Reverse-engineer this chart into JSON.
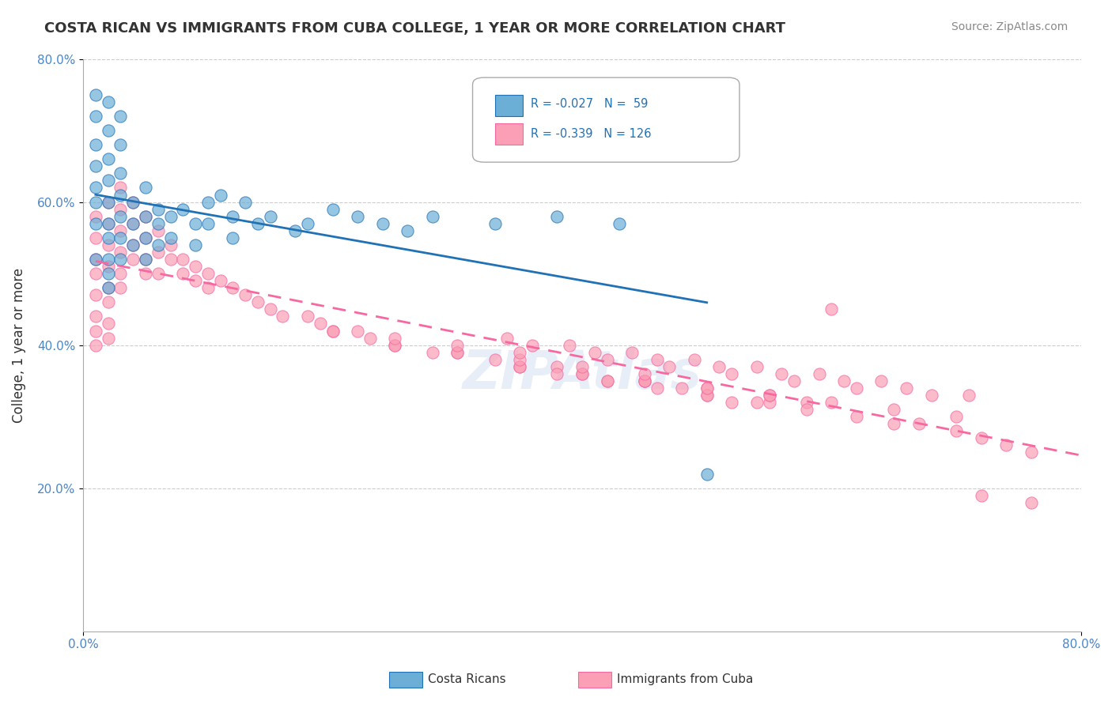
{
  "title": "COSTA RICAN VS IMMIGRANTS FROM CUBA COLLEGE, 1 YEAR OR MORE CORRELATION CHART",
  "source": "Source: ZipAtlas.com",
  "xlabel": "",
  "ylabel": "College, 1 year or more",
  "xlim": [
    0.0,
    0.8
  ],
  "ylim": [
    0.0,
    0.8
  ],
  "xtick_labels": [
    "0.0%",
    "80.0%"
  ],
  "ytick_labels": [
    "20.0%",
    "40.0%",
    "60.0%",
    "80.0%"
  ],
  "legend_r1": "R = -0.027",
  "legend_n1": "N =  59",
  "legend_r2": "R = -0.339",
  "legend_n2": "N = 126",
  "color_blue": "#6baed6",
  "color_pink": "#fa9fb5",
  "color_blue_line": "#2171b5",
  "color_pink_line": "#f768a1",
  "color_blue_dark": "#2b6cb0",
  "color_pink_dark": "#e05fa0",
  "watermark": "ZIPAtlas",
  "costa_rican_x": [
    0.01,
    0.01,
    0.01,
    0.01,
    0.01,
    0.01,
    0.01,
    0.01,
    0.02,
    0.02,
    0.02,
    0.02,
    0.02,
    0.02,
    0.02,
    0.02,
    0.02,
    0.02,
    0.03,
    0.03,
    0.03,
    0.03,
    0.03,
    0.03,
    0.03,
    0.04,
    0.04,
    0.04,
    0.05,
    0.05,
    0.05,
    0.05,
    0.06,
    0.06,
    0.06,
    0.07,
    0.07,
    0.08,
    0.09,
    0.09,
    0.1,
    0.1,
    0.11,
    0.12,
    0.12,
    0.13,
    0.14,
    0.15,
    0.17,
    0.18,
    0.2,
    0.22,
    0.24,
    0.26,
    0.28,
    0.33,
    0.38,
    0.43,
    0.5
  ],
  "costa_rican_y": [
    0.75,
    0.72,
    0.68,
    0.65,
    0.62,
    0.6,
    0.57,
    0.52,
    0.74,
    0.7,
    0.66,
    0.63,
    0.6,
    0.57,
    0.55,
    0.52,
    0.5,
    0.48,
    0.72,
    0.68,
    0.64,
    0.61,
    0.58,
    0.55,
    0.52,
    0.6,
    0.57,
    0.54,
    0.62,
    0.58,
    0.55,
    0.52,
    0.59,
    0.57,
    0.54,
    0.58,
    0.55,
    0.59,
    0.57,
    0.54,
    0.6,
    0.57,
    0.61,
    0.58,
    0.55,
    0.6,
    0.57,
    0.58,
    0.56,
    0.57,
    0.59,
    0.58,
    0.57,
    0.56,
    0.58,
    0.57,
    0.58,
    0.57,
    0.22
  ],
  "cuba_x": [
    0.01,
    0.01,
    0.01,
    0.01,
    0.01,
    0.01,
    0.01,
    0.01,
    0.02,
    0.02,
    0.02,
    0.02,
    0.02,
    0.02,
    0.02,
    0.02,
    0.03,
    0.03,
    0.03,
    0.03,
    0.03,
    0.03,
    0.04,
    0.04,
    0.04,
    0.04,
    0.05,
    0.05,
    0.05,
    0.05,
    0.06,
    0.06,
    0.06,
    0.07,
    0.07,
    0.08,
    0.08,
    0.09,
    0.09,
    0.1,
    0.1,
    0.11,
    0.12,
    0.13,
    0.14,
    0.15,
    0.16,
    0.18,
    0.19,
    0.2,
    0.22,
    0.23,
    0.25,
    0.28,
    0.3,
    0.33,
    0.35,
    0.38,
    0.4,
    0.42,
    0.45,
    0.48,
    0.5,
    0.52,
    0.55,
    0.58,
    0.6,
    0.62,
    0.65,
    0.67,
    0.7,
    0.72,
    0.74,
    0.76,
    0.45,
    0.5,
    0.55,
    0.6,
    0.65,
    0.7,
    0.38,
    0.42,
    0.46,
    0.5,
    0.54,
    0.58,
    0.35,
    0.4,
    0.45,
    0.5,
    0.55,
    0.25,
    0.3,
    0.35,
    0.4,
    0.45,
    0.2,
    0.25,
    0.3,
    0.35,
    0.42,
    0.47,
    0.52,
    0.57,
    0.62,
    0.68,
    0.72,
    0.76,
    0.36,
    0.41,
    0.46,
    0.51,
    0.56,
    0.61,
    0.66,
    0.71,
    0.34,
    0.39,
    0.44,
    0.49,
    0.54,
    0.59,
    0.64
  ],
  "cuba_y": [
    0.58,
    0.55,
    0.52,
    0.5,
    0.47,
    0.44,
    0.42,
    0.4,
    0.6,
    0.57,
    0.54,
    0.51,
    0.48,
    0.46,
    0.43,
    0.41,
    0.62,
    0.59,
    0.56,
    0.53,
    0.5,
    0.48,
    0.6,
    0.57,
    0.54,
    0.52,
    0.58,
    0.55,
    0.52,
    0.5,
    0.56,
    0.53,
    0.5,
    0.54,
    0.52,
    0.52,
    0.5,
    0.51,
    0.49,
    0.5,
    0.48,
    0.49,
    0.48,
    0.47,
    0.46,
    0.45,
    0.44,
    0.44,
    0.43,
    0.42,
    0.42,
    0.41,
    0.4,
    0.39,
    0.39,
    0.38,
    0.37,
    0.37,
    0.36,
    0.35,
    0.35,
    0.34,
    0.33,
    0.32,
    0.32,
    0.32,
    0.45,
    0.3,
    0.29,
    0.29,
    0.28,
    0.27,
    0.26,
    0.25,
    0.35,
    0.34,
    0.33,
    0.32,
    0.31,
    0.3,
    0.36,
    0.35,
    0.34,
    0.33,
    0.32,
    0.31,
    0.37,
    0.36,
    0.35,
    0.34,
    0.33,
    0.4,
    0.39,
    0.38,
    0.37,
    0.36,
    0.42,
    0.41,
    0.4,
    0.39,
    0.38,
    0.37,
    0.36,
    0.35,
    0.34,
    0.33,
    0.19,
    0.18,
    0.4,
    0.39,
    0.38,
    0.37,
    0.36,
    0.35,
    0.34,
    0.33,
    0.41,
    0.4,
    0.39,
    0.38,
    0.37,
    0.36,
    0.35
  ]
}
